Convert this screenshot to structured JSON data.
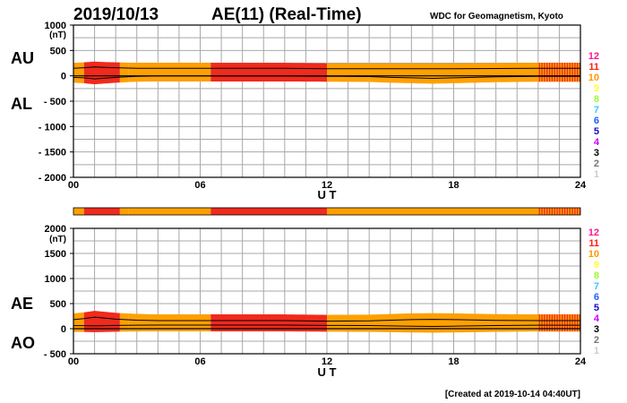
{
  "header": {
    "date": "2019/10/13",
    "title": "AE(11) (Real-Time)",
    "source": "WDC for Geomagnetism, Kyoto"
  },
  "footer": {
    "created": "[Created at 2019-10-14 04:40UT]"
  },
  "colors": {
    "bar_11": "#f02a1c",
    "bar_10": "#ffa000",
    "grid": "#a8a8a8",
    "trace": "#000000"
  },
  "station_scale": {
    "levels": [
      {
        "label": "12",
        "color": "#ff1493"
      },
      {
        "label": "11",
        "color": "#ff1f0f"
      },
      {
        "label": "10",
        "color": "#ff9900"
      },
      {
        "label": "9",
        "color": "#ffff33"
      },
      {
        "label": "8",
        "color": "#99ff33"
      },
      {
        "label": "7",
        "color": "#33ccff"
      },
      {
        "label": "6",
        "color": "#1f5fff"
      },
      {
        "label": "5",
        "color": "#1a0acc"
      },
      {
        "label": "4",
        "color": "#cc00ff"
      },
      {
        "label": "3",
        "color": "#000000"
      },
      {
        "label": "2",
        "color": "#777777"
      },
      {
        "label": "1",
        "color": "#cccccc"
      }
    ]
  },
  "chart_data": [
    {
      "type": "line",
      "name": "AU/AL",
      "side_labels": [
        "AU",
        "AL"
      ],
      "ylabel": "(nT)",
      "xlabel": "U T",
      "xlim": [
        0,
        24
      ],
      "ylim": [
        -2000,
        1000
      ],
      "xticks": [
        "00",
        "06",
        "12",
        "18",
        "24"
      ],
      "yticks": [
        {
          "value": 1000,
          "label": "1000"
        },
        {
          "value": 500,
          "label": "500"
        },
        {
          "value": 0,
          "label": "0"
        },
        {
          "value": -500,
          "label": "- 500"
        },
        {
          "value": -1000,
          "label": "- 1000"
        },
        {
          "value": -1500,
          "label": "- 1500"
        },
        {
          "value": -2000,
          "label": "- 2000"
        }
      ],
      "grid": true,
      "series": [
        {
          "name": "AU",
          "x": [
            0,
            0.5,
            1,
            1.5,
            2,
            3,
            4,
            6,
            8,
            10,
            12,
            14,
            16,
            17,
            18,
            20,
            22,
            24
          ],
          "values": [
            150,
            160,
            175,
            165,
            160,
            150,
            150,
            150,
            150,
            150,
            140,
            140,
            140,
            140,
            140,
            145,
            150,
            150
          ]
        },
        {
          "name": "AL",
          "x": [
            0,
            0.5,
            1,
            1.5,
            2,
            3,
            4,
            6,
            8,
            10,
            12,
            14,
            15,
            16,
            17,
            18,
            20,
            22,
            24
          ],
          "values": [
            -30,
            -40,
            -60,
            -45,
            -30,
            -10,
            -5,
            -5,
            -5,
            -5,
            -10,
            -15,
            -30,
            -40,
            -50,
            -40,
            -20,
            -10,
            -10
          ]
        }
      ]
    },
    {
      "type": "bar",
      "name": "station-count",
      "segments": [
        {
          "start": 0,
          "end": 0.5,
          "level": 10
        },
        {
          "start": 0.5,
          "end": 2.2,
          "level": 11
        },
        {
          "start": 2.2,
          "end": 2.6,
          "level": 10
        },
        {
          "start": 2.6,
          "end": 6.5,
          "level": 10
        },
        {
          "start": 6.5,
          "end": 12,
          "level": 11
        },
        {
          "start": 12,
          "end": 22,
          "level": 10
        },
        {
          "start": 22,
          "end": 24,
          "level": 11,
          "striped": true
        }
      ]
    },
    {
      "type": "line",
      "name": "AE/AO",
      "side_labels": [
        "AE",
        "AO"
      ],
      "ylabel": "(nT)",
      "xlabel": "U T",
      "xlim": [
        0,
        24
      ],
      "ylim": [
        -500,
        2000
      ],
      "xticks": [
        "00",
        "06",
        "12",
        "18",
        "24"
      ],
      "yticks": [
        {
          "value": 2000,
          "label": "2000"
        },
        {
          "value": 1500,
          "label": "1500"
        },
        {
          "value": 1000,
          "label": "1000"
        },
        {
          "value": 500,
          "label": "500"
        },
        {
          "value": 0,
          "label": "0"
        },
        {
          "value": -500,
          "label": "- 500"
        }
      ],
      "grid": true,
      "series": [
        {
          "name": "AE",
          "x": [
            0,
            0.5,
            1,
            1.5,
            2,
            3,
            4,
            6,
            8,
            10,
            12,
            14,
            16,
            17,
            18,
            20,
            22,
            24
          ],
          "values": [
            180,
            200,
            230,
            210,
            190,
            170,
            160,
            160,
            160,
            160,
            150,
            155,
            180,
            185,
            180,
            165,
            160,
            160
          ]
        },
        {
          "name": "AO",
          "x": [
            0,
            0.5,
            1,
            1.5,
            2,
            3,
            4,
            6,
            8,
            10,
            12,
            14,
            16,
            17,
            18,
            20,
            22,
            24
          ],
          "values": [
            60,
            60,
            55,
            60,
            65,
            70,
            72,
            72,
            72,
            72,
            65,
            62,
            50,
            45,
            50,
            62,
            70,
            70
          ]
        }
      ]
    }
  ]
}
